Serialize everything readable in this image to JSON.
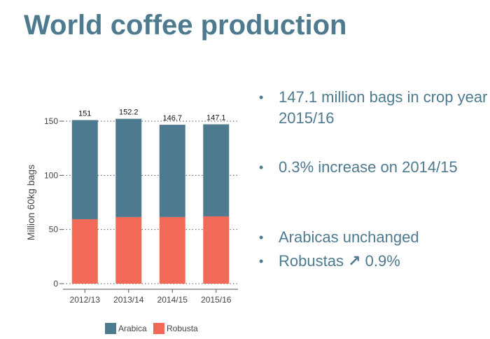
{
  "slide": {
    "title": "World coffee production"
  },
  "bullets": [
    {
      "text": "147.1 million bags in crop year 2015/16"
    },
    {
      "text": "0.3% increase on 2014/15"
    },
    {
      "text": "Arabicas unchanged"
    },
    {
      "prefix": "Robustas",
      "arrow": "↗",
      "suffix": "0.9%"
    }
  ],
  "chart_data": {
    "type": "bar",
    "stacked": true,
    "categories": [
      "2012/13",
      "2013/14",
      "2014/15",
      "2015/16"
    ],
    "series": [
      {
        "name": "Robusta",
        "color": "#f26a57",
        "values": [
          59.5,
          61.5,
          61.5,
          62.1
        ]
      },
      {
        "name": "Arabica",
        "color": "#4e7a8f",
        "values": [
          91.5,
          90.7,
          85.2,
          85.0
        ]
      }
    ],
    "totals": [
      "151",
      "152.2",
      "146.7",
      "147.1"
    ],
    "ylabel": "Million 60kg bags",
    "ylim": [
      0,
      150
    ],
    "yticks": [
      0,
      50,
      100,
      150
    ],
    "grid": true,
    "legend_position": "bottom",
    "legend_order": [
      "Arabica",
      "Robusta"
    ]
  }
}
